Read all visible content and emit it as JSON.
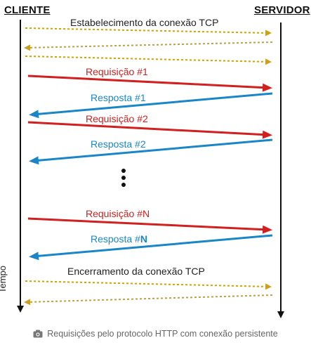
{
  "client_label": "CLIENTE",
  "server_label": "SERVIDOR",
  "time_label": "Tempo",
  "handshake_label": "Estabelecimento da conexão TCP",
  "close_label": "Encerramento da conexão TCP",
  "messages": {
    "req1": "Requisição #1",
    "resp1": "Resposta #1",
    "req2": "Requisição #2",
    "resp2": "Resposta #2",
    "reqN": "Requisição #N",
    "respN_text": "Resposta #",
    "respN_bold": "N"
  },
  "caption": "Requisições pelo protocolo HTTP com conexão persistente",
  "icons": {
    "caption_icon": "camera-icon"
  },
  "colors": {
    "request": "#d0201f",
    "response": "#1a86c8",
    "handshake": "#c8a020",
    "timeline": "#111111"
  }
}
